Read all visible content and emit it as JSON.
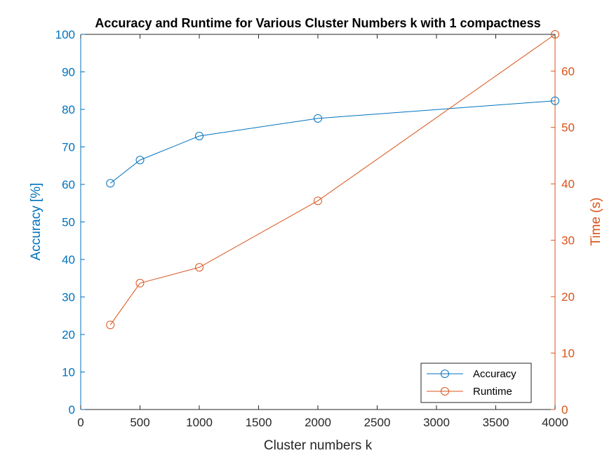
{
  "chart_data": {
    "type": "line",
    "title": "Accuracy and Runtime for Various Cluster Numbers k with 1 compactness",
    "xlabel": "Cluster numbers k",
    "ylabel_left": "Accuracy [%]",
    "ylabel_right": "Time (s)",
    "x": [
      250,
      500,
      1000,
      2000,
      4000
    ],
    "xlim": [
      0,
      4000
    ],
    "xticks": [
      0,
      500,
      1000,
      1500,
      2000,
      2500,
      3000,
      3500,
      4000
    ],
    "ylim_left": [
      0,
      100
    ],
    "yticks_left": [
      0,
      10,
      20,
      30,
      40,
      50,
      60,
      70,
      80,
      90,
      100
    ],
    "ylim_right": [
      0,
      66.5
    ],
    "yticks_right": [
      0,
      10,
      20,
      30,
      40,
      50,
      60
    ],
    "grid": false,
    "legend_position": "bottom-right",
    "series": [
      {
        "name": "Accuracy",
        "axis": "left",
        "color": "#0072BD",
        "marker": "circle",
        "values": [
          60.3,
          66.5,
          72.9,
          77.6,
          82.3
        ]
      },
      {
        "name": "Runtime",
        "axis": "right",
        "color": "#D95319",
        "marker": "circle",
        "values": [
          15.0,
          22.4,
          25.2,
          37.0,
          66.5
        ]
      }
    ]
  }
}
